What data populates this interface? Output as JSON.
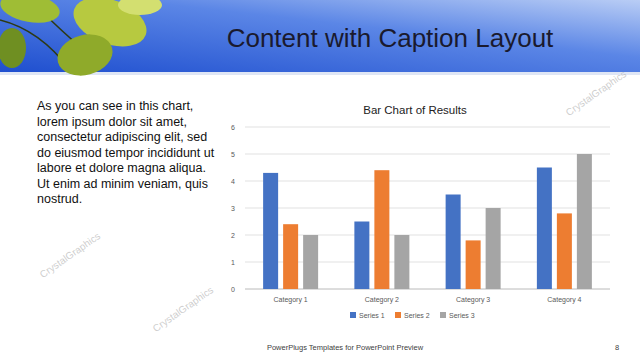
{
  "slide": {
    "title": "Content with Caption Layout",
    "caption": "As you can see in this chart, lorem ipsum dolor sit amet, consectetur adipiscing elit, sed do eiusmod tempor incididunt ut labore et dolore magna aliqua. Ut enim ad minim veniam, quis nostrud.",
    "footer": "PowerPlugs Templates for PowerPoint  Preview",
    "page_number": "8",
    "watermark": "CrystalGraphics"
  },
  "chart_data": {
    "type": "bar",
    "title": "Bar Chart of Results",
    "categories": [
      "Category 1",
      "Category 2",
      "Category 3",
      "Category 4"
    ],
    "series": [
      {
        "name": "Series 1",
        "color": "#4472c4",
        "values": [
          4.3,
          2.5,
          3.5,
          4.5
        ]
      },
      {
        "name": "Series 2",
        "color": "#ed7d31",
        "values": [
          2.4,
          4.4,
          1.8,
          2.8
        ]
      },
      {
        "name": "Series 3",
        "color": "#a5a5a5",
        "values": [
          2.0,
          2.0,
          3.0,
          5.0
        ]
      }
    ],
    "ylim": [
      0,
      6
    ],
    "yticks": [
      0,
      1,
      2,
      3,
      4,
      5,
      6
    ],
    "grid": true,
    "legend": "bottom"
  }
}
